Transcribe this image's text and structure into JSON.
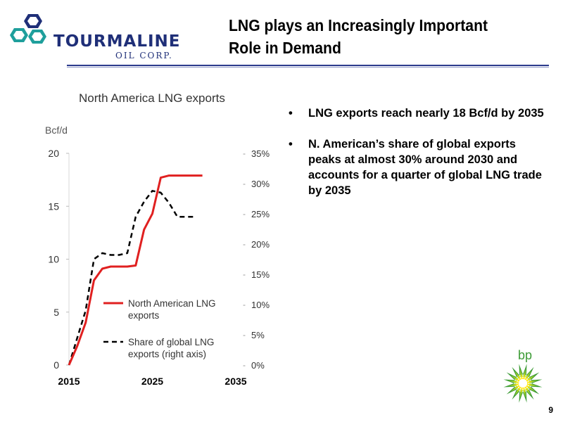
{
  "header": {
    "title_line1": "LNG plays an Increasingly Important",
    "title_line2": "Role in Demand",
    "logo_name": "TOURMALINE",
    "logo_sub": "OIL CORP."
  },
  "chart_data": {
    "type": "line",
    "title": "North America LNG exports",
    "ylabel": "Bcf/d",
    "y2label": "",
    "x": [
      2015,
      2016,
      2017,
      2018,
      2019,
      2020,
      2021,
      2022,
      2023,
      2024,
      2025,
      2026,
      2027,
      2028,
      2029,
      2030,
      2031,
      2032,
      2033,
      2034,
      2035
    ],
    "xticks": [
      "2015",
      "2025",
      "2035"
    ],
    "xlim": [
      2015,
      2035
    ],
    "ylim": [
      0,
      20
    ],
    "yticks": [
      "0",
      "5",
      "10",
      "15",
      "20"
    ],
    "y2lim": [
      0,
      35
    ],
    "y2ticks": [
      "0%",
      "5%",
      "10%",
      "15%",
      "20%",
      "25%",
      "30%",
      "35%"
    ],
    "series": [
      {
        "name": "North American LNG exports",
        "axis": "left",
        "style": "solid",
        "color": "#e02020",
        "values": [
          0,
          1.8,
          4.0,
          8.0,
          9.1,
          9.3,
          9.3,
          9.3,
          9.4,
          12.8,
          14.3,
          17.7,
          17.9,
          17.9,
          17.9,
          17.9,
          17.9,
          null,
          null,
          null,
          null
        ]
      },
      {
        "name": "Share of global LNG exports (right axis)",
        "axis": "right",
        "style": "dashed",
        "color": "#000000",
        "values": [
          0,
          4.5,
          9.0,
          17.5,
          18.5,
          18.2,
          18.2,
          18.5,
          24.5,
          27.0,
          28.8,
          28.5,
          26.8,
          24.5,
          24.5,
          24.5,
          null,
          null,
          null,
          null,
          null
        ]
      }
    ],
    "legend_position": "inside-lower-right",
    "grid": false
  },
  "bullets": [
    "LNG exports reach nearly 18 Bcf/d by 2035",
    "N. American’s share of global exports peaks at almost 30% around 2030 and accounts for a quarter of global LNG trade by 2035"
  ],
  "footer": {
    "page_number": "9",
    "bp_logo_text": "bp"
  }
}
